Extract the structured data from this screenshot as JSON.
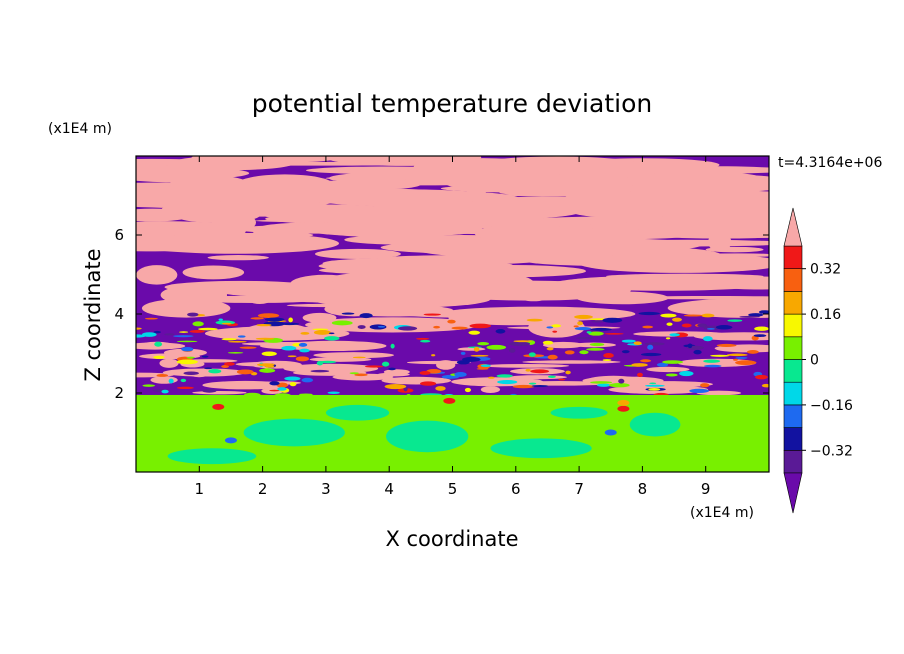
{
  "chart_data": {
    "type": "heatmap",
    "title": "potential temperature deviation",
    "time_label": "t=4.3164e+06",
    "xlabel": "X coordinate",
    "ylabel": "Z coordinate",
    "x_unit": "(x1E4 m)",
    "y_unit": "(x1E4 m)",
    "xlim": [
      0,
      10
    ],
    "ylim": [
      0,
      8
    ],
    "x_ticks": [
      "1",
      "2",
      "3",
      "4",
      "5",
      "6",
      "7",
      "8",
      "9"
    ],
    "y_ticks": [
      "2",
      "4",
      "6"
    ],
    "colorbar": {
      "levels": [
        {
          "lo": -0.4,
          "hi": -0.32,
          "color": "#5a1a96"
        },
        {
          "lo": -0.32,
          "hi": -0.24,
          "color": "#1212a0"
        },
        {
          "lo": -0.24,
          "hi": -0.16,
          "color": "#1e6af0"
        },
        {
          "lo": -0.16,
          "hi": -0.08,
          "color": "#00d8e8"
        },
        {
          "lo": -0.08,
          "hi": 0.0,
          "color": "#08e890"
        },
        {
          "lo": 0.0,
          "hi": 0.08,
          "color": "#78f000"
        },
        {
          "lo": 0.08,
          "hi": 0.16,
          "color": "#f8f800"
        },
        {
          "lo": 0.16,
          "hi": 0.24,
          "color": "#f8a800"
        },
        {
          "lo": 0.24,
          "hi": 0.32,
          "color": "#f86010"
        },
        {
          "lo": 0.32,
          "hi": 0.4,
          "color": "#f01818"
        }
      ],
      "under_color": "#6a0aaa",
      "over_color": "#f8a8a8",
      "tick_labels": [
        "0.32",
        "0.16",
        "0",
        "−0.16",
        "−0.32"
      ]
    },
    "field_colors": {
      "stratified_positive": "#f8a8a8",
      "stratified_negative": "#6a0aaa",
      "boundary_layer_green": "#78f000",
      "boundary_layer_teal": "#08e890"
    }
  }
}
